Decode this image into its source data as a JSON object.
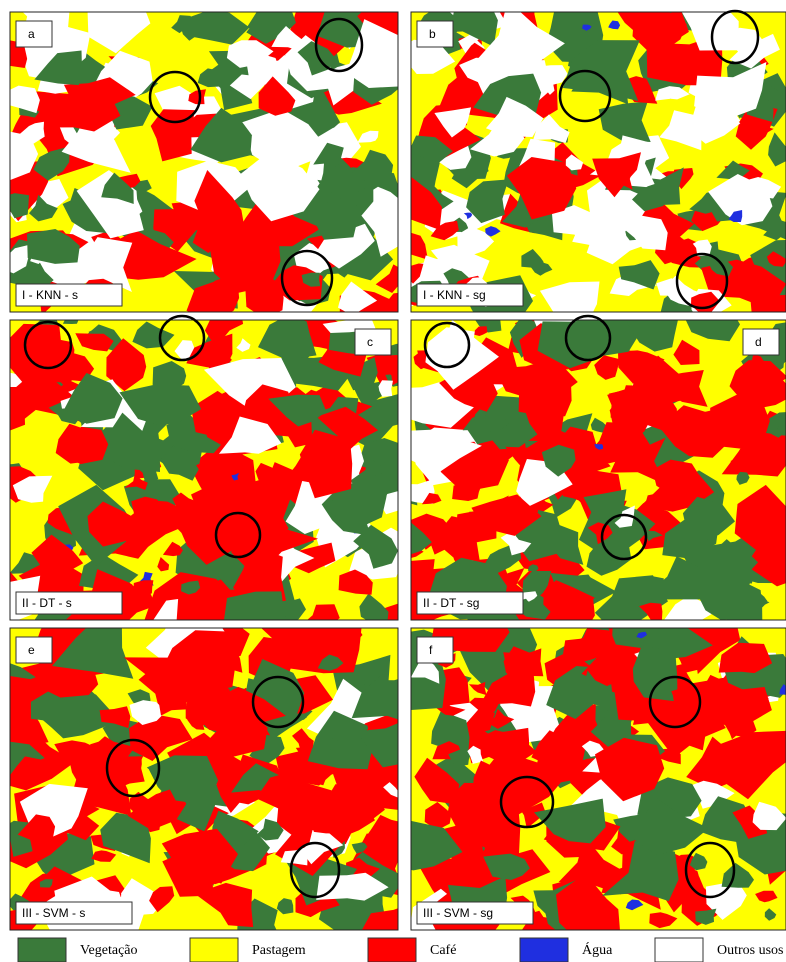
{
  "panels": [
    {
      "letter": "a",
      "label": "I - KNN - s"
    },
    {
      "letter": "b",
      "label": "I - KNN - sg"
    },
    {
      "letter": "c",
      "label": "II - DT - s"
    },
    {
      "letter": "d",
      "label": "II - DT - sg"
    },
    {
      "letter": "e",
      "label": "III - SVM - s"
    },
    {
      "letter": "f",
      "label": "III - SVM - sg"
    }
  ],
  "legend": [
    {
      "label": "Vegetação",
      "color": "#3a7a3a"
    },
    {
      "label": "Pastagem",
      "color": "#ffff00"
    },
    {
      "label": "Café",
      "color": "#ff0000"
    },
    {
      "label": "Água",
      "color": "#1f2fe0"
    },
    {
      "label": "Outros usos",
      "color": "#ffffff"
    }
  ]
}
